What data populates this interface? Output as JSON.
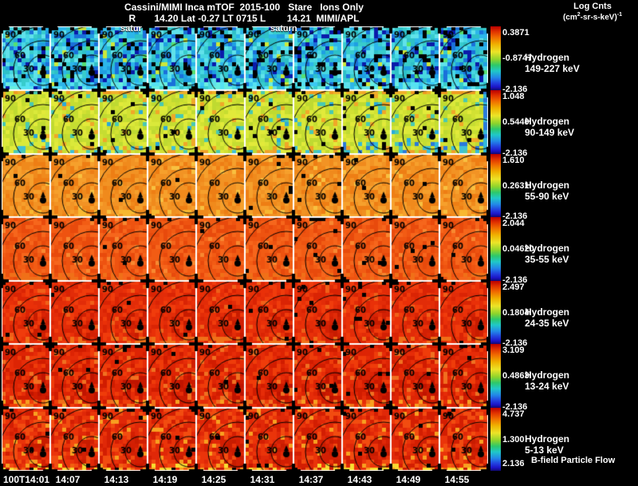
{
  "header": {
    "title": "Cassini/MIMI Inca mTOF  2015-100   Stare   Ions Only",
    "subtitle": "R       14.20 Lat -0.27 LT 0715 L        14.21  MIMI/APL",
    "colorbar_title": "Log Cnts",
    "units": {
      "p1": "(cm",
      "s1": "2",
      "p2": "-sr-s-keV)",
      "s2": "-1"
    }
  },
  "annotations": {
    "satur": "satur",
    "saturn": "saturn",
    "bfield": "B-field Particle Flow"
  },
  "contour_labels": {
    "outer": "90",
    "mid": "60",
    "inner": "30"
  },
  "rows": [
    {
      "species": "Hydrogen",
      "energy": "149-227 keV",
      "style": "blue",
      "cb": {
        "top": "0.3871",
        "mid": "-0.8747",
        "bot": "-2.136"
      }
    },
    {
      "species": "Hydrogen",
      "energy": "90-149 keV",
      "style": "yellowgreen",
      "cb": {
        "top": "1.048",
        "mid": "0.5440",
        "bot": "-2.136"
      }
    },
    {
      "species": "Hydrogen",
      "energy": "55-90 keV",
      "style": "orange",
      "cb": {
        "top": "1.610",
        "mid": "0.2631",
        "bot": "-2.136"
      }
    },
    {
      "species": "Hydrogen",
      "energy": "35-55 keV",
      "style": "redorange",
      "cb": {
        "top": "2.044",
        "mid": "0.04620",
        "bot": "-2.136"
      }
    },
    {
      "species": "Hydrogen",
      "energy": "24-35 keV",
      "style": "red",
      "cb": {
        "top": "2.497",
        "mid": "0.1804",
        "bot": "-2.136"
      }
    },
    {
      "species": "Hydrogen",
      "energy": "13-24 keV",
      "style": "red2",
      "cb": {
        "top": "3.109",
        "mid": "0.4863",
        "bot": "-2.136"
      }
    },
    {
      "species": "Hydrogen",
      "energy": "5-13 keV",
      "style": "red3",
      "cb": {
        "top": "4.737",
        "mid": "1.300",
        "bot": "2.136"
      }
    }
  ],
  "time_axis": {
    "labels": [
      "100T14:01",
      "14:07",
      "14:13",
      "14:19",
      "14:25",
      "14:31",
      "14:37",
      "14:43",
      "14:49",
      "14:55"
    ]
  },
  "palettes": {
    "blue": {
      "base": [
        "#1f9fe2",
        "#2cb6ea",
        "#48d8e2",
        "#1a70da",
        "#38cccc",
        "#60e2ea",
        "#2ec0c8"
      ],
      "specks": [
        [
          "#000000",
          0.09
        ],
        [
          "#0a1aaa",
          0.08
        ],
        [
          "#cce83a",
          0.03
        ],
        [
          "#55e070",
          0.02
        ]
      ],
      "bottom": [
        "#55e2f2",
        "#3ac8f2",
        "#68eee0"
      ],
      "topBlack": 0.22
    },
    "yellowgreen": {
      "base": [
        "#d2e133",
        "#dae93a",
        "#c6dd31",
        "#bfda31",
        "#e2ea3a"
      ],
      "specks": [
        [
          "#f0a828",
          0.05
        ],
        [
          "#49c9b1",
          0.05
        ],
        [
          "#2aaad9",
          0.02
        ],
        [
          "#000000",
          0.02
        ]
      ],
      "bottom": [
        "#3ec0d8",
        "#f0a028"
      ],
      "topOrange": [
        "#f09a20",
        "#f0b028"
      ],
      "rightBand": [
        "#32bada",
        "#2a7ada"
      ],
      "topBlack": 0.1
    },
    "orange": {
      "base": [
        "#f08a1c",
        "#f29324",
        "#ee7e14",
        "#f6a02c"
      ],
      "specks": [
        [
          "#f8c040",
          0.04
        ],
        [
          "#000000",
          0.012
        ]
      ],
      "bottom": [
        "#f8b830",
        "#f09020"
      ],
      "topBright": "#f89820",
      "topBlack": 0.1
    },
    "redorange": {
      "base": [
        "#ee5310",
        "#f25c14",
        "#e84a0c",
        "#f6661c"
      ],
      "specks": [
        [
          "#f88830",
          0.03
        ],
        [
          "#000000",
          0.01
        ]
      ],
      "bottom": [
        "#f07018"
      ],
      "topBlack": 0.1
    },
    "red": {
      "base": [
        "#e22c08",
        "#e93008",
        "#da2404",
        "#f03c0c"
      ],
      "specks": [
        [
          "#f06018",
          0.04
        ],
        [
          "#000000",
          0.01
        ]
      ],
      "bottom": [
        "#f07018"
      ],
      "dark": [
        "#c81c00",
        "#d22004"
      ],
      "topBlack": 0.1
    },
    "red2": {
      "base": [
        "#dd2404",
        "#e62c08",
        "#d11c00",
        "#ef3c0a"
      ],
      "specks": [
        [
          "#f07020",
          0.06
        ],
        [
          "#000000",
          0.01
        ]
      ],
      "bottom": [
        "#f07018",
        "#f8a020"
      ],
      "dark": [
        "#c01400",
        "#cc1a00"
      ],
      "topBlack": 0.12
    },
    "red3": {
      "base": [
        "#e02808",
        "#ea340a",
        "#d31e02",
        "#f24c10"
      ],
      "specks": [
        [
          "#f8a020",
          0.05
        ],
        [
          "#000000",
          0.01
        ]
      ],
      "vivid": [
        "#f8d830",
        "#f8a020",
        "#f06010",
        "#e83008",
        "#c81800",
        "#f8e030"
      ],
      "dark": [
        "#c81c00",
        "#d22004"
      ],
      "topBlack": 0.12
    }
  },
  "chart_data": {
    "type": "heatmap",
    "title": "Cassini/MIMI Inca mTOF 2015-100 Stare Ions Only",
    "subtitle": "R 14.20 Lat -0.27 LT 0715 L 14.21 MIMI/APL",
    "colorbar_label": "Log Cnts (cm2-sr-s-keV)-1",
    "grid": "10 columns x 7 rows of all-sky pitch-angle images",
    "x_tick_labels": [
      "100T14:01",
      "14:07",
      "14:13",
      "14:19",
      "14:25",
      "14:31",
      "14:37",
      "14:43",
      "14:49",
      "14:55"
    ],
    "contours_deg": [
      30,
      60,
      90
    ],
    "panels": [
      {
        "label": "Hydrogen 149-227 keV",
        "scale_max": 0.3871,
        "scale_mid": -0.8747,
        "scale_min": -2.136,
        "dominant_color": "blue-cyan"
      },
      {
        "label": "Hydrogen 90-149 keV",
        "scale_max": 1.048,
        "scale_mid": 0.544,
        "scale_min": -2.136,
        "dominant_color": "yellow-green"
      },
      {
        "label": "Hydrogen 55-90 keV",
        "scale_max": 1.61,
        "scale_mid": 0.2631,
        "scale_min": -2.136,
        "dominant_color": "orange"
      },
      {
        "label": "Hydrogen 35-55 keV",
        "scale_max": 2.044,
        "scale_mid": 0.0462,
        "scale_min": -2.136,
        "dominant_color": "red-orange"
      },
      {
        "label": "Hydrogen 24-35 keV",
        "scale_max": 2.497,
        "scale_mid": 0.1804,
        "scale_min": -2.136,
        "dominant_color": "red"
      },
      {
        "label": "Hydrogen 13-24 keV",
        "scale_max": 3.109,
        "scale_mid": 0.4863,
        "scale_min": -2.136,
        "dominant_color": "red"
      },
      {
        "label": "Hydrogen 5-13 keV",
        "scale_max": 4.737,
        "scale_mid": 1.3,
        "scale_min": 2.136,
        "dominant_color": "red"
      }
    ],
    "annotations": [
      "satur",
      "saturn",
      "B-field Particle Flow"
    ],
    "legend_position": "right"
  }
}
